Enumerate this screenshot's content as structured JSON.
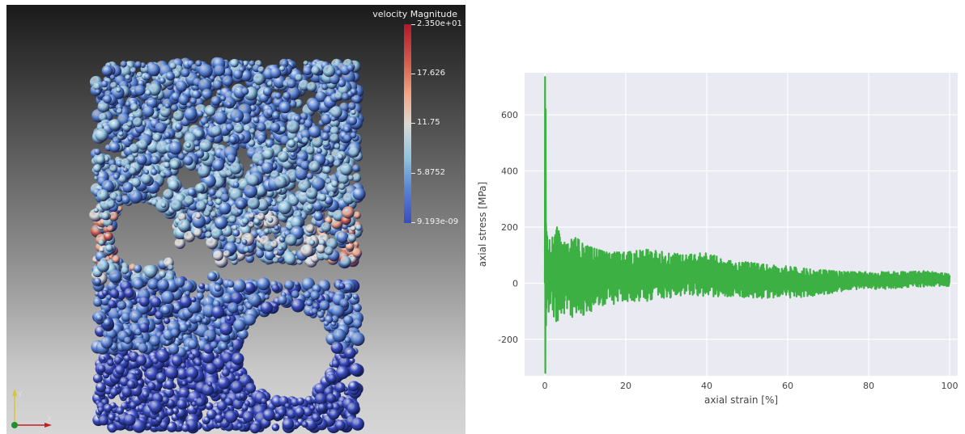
{
  "viewport": {
    "colorbar": {
      "title": "velocity Magnitude",
      "labels": [
        "2.350e+01",
        "17.626",
        "11.75",
        "5.8752",
        "9.193e-09"
      ],
      "colors": [
        "#b2182b",
        "#d6604d",
        "#f4a582",
        "#ddd9d4",
        "#92c5de",
        "#5a86d6",
        "#3b4cc0"
      ]
    },
    "axes_widget": {
      "x_label": "X",
      "y_label": "Y"
    }
  },
  "chart_data": {
    "type": "line",
    "xlabel": "axial strain [%]",
    "ylabel": "axial stress [MPa]",
    "xlim": [
      -5,
      102
    ],
    "ylim": [
      -330,
      750
    ],
    "xticks": [
      0,
      20,
      40,
      60,
      80,
      100
    ],
    "yticks": [
      -200,
      0,
      200,
      400,
      600
    ],
    "grid": true,
    "series_color": "#3cb043",
    "series": [
      {
        "x": [
          0,
          0.15,
          0.3,
          0.5,
          0.7,
          1,
          1.5,
          2,
          3,
          4,
          5,
          7.5,
          10,
          15,
          20,
          25,
          30,
          35,
          40,
          45,
          50,
          55,
          60,
          65,
          70,
          75,
          80,
          85,
          90,
          95,
          100
        ],
        "upper": [
          0,
          735,
          600,
          230,
          180,
          230,
          200,
          175,
          200,
          175,
          140,
          165,
          135,
          110,
          110,
          120,
          110,
          100,
          110,
          80,
          75,
          65,
          60,
          50,
          45,
          40,
          40,
          40,
          40,
          45,
          35
        ],
        "lower": [
          0,
          -320,
          -150,
          -110,
          -90,
          -130,
          -100,
          -130,
          -145,
          -125,
          -115,
          -150,
          -130,
          -105,
          -85,
          -70,
          -60,
          -50,
          -55,
          -55,
          -70,
          -60,
          -60,
          -55,
          -40,
          -30,
          -20,
          -25,
          -20,
          -10,
          -10
        ],
        "mean": [
          0,
          200,
          100,
          60,
          50,
          45,
          40,
          35,
          30,
          25,
          20,
          20,
          20,
          25,
          30,
          30,
          30,
          35,
          35,
          20,
          10,
          10,
          5,
          5,
          5,
          10,
          10,
          10,
          15,
          15,
          10
        ]
      }
    ]
  }
}
